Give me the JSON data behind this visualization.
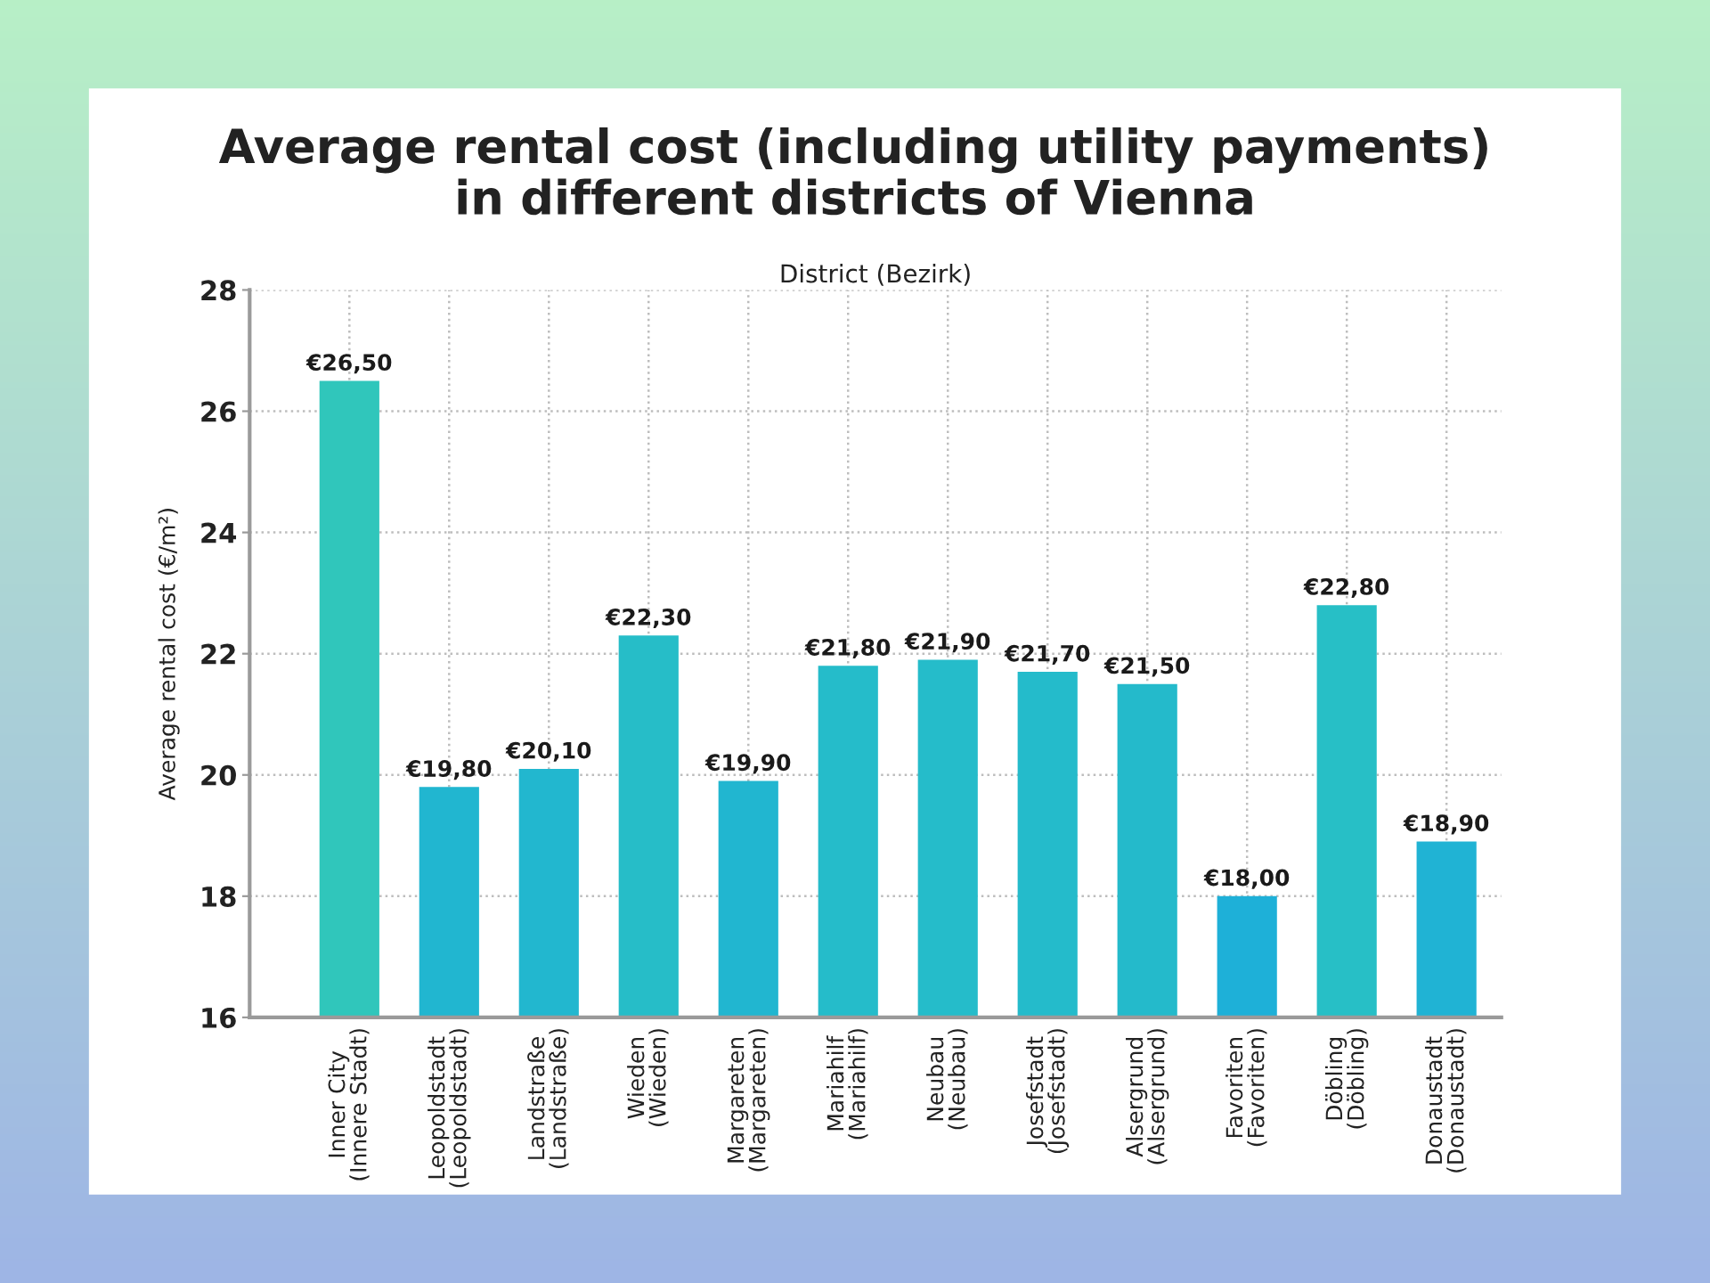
{
  "chart_data": {
    "type": "bar",
    "title": "Average rental cost (including utility payments)\nin different districts of Vienna",
    "xlabel": "District (Bezirk)",
    "ylabel": "Average rental cost (€/m²)",
    "categories": [
      "Inner City\n(Innere Stadt)",
      "Leopoldstadt\n(Leopoldstadt)",
      "Landstraße\n(Landstraße)",
      "Wieden\n(Wieden)",
      "Margareten\n(Margareten)",
      "Mariahilf\n(Mariahilf)",
      "Neubau\n(Neubau)",
      "Josefstadt\n(Josefstadt)",
      "Alsergrund\n(Alsergrund)",
      "Favoriten\n(Favoriten)",
      "Döbling\n(Döbling)",
      "Donaustadt\n(Donaustadt)"
    ],
    "values": [
      26.5,
      19.8,
      20.1,
      22.3,
      19.9,
      21.8,
      21.9,
      21.7,
      21.5,
      18.0,
      22.8,
      18.9
    ],
    "value_labels": [
      "€26,50",
      "€19,80",
      "€20,10",
      "€22,30",
      "€19,90",
      "€21,80",
      "€21,90",
      "€21,70",
      "€21,50",
      "€18,00",
      "€22,80",
      "€18,90"
    ],
    "colors": [
      "#30c6bb",
      "#21b6d0",
      "#22b7cf",
      "#26bdc8",
      "#21b6d0",
      "#25bcca",
      "#25bcca",
      "#24bbcb",
      "#24bacb",
      "#1eb0d8",
      "#27bfc6",
      "#20b3d4"
    ],
    "ylim": [
      16,
      28
    ],
    "yticks": [
      16,
      18,
      20,
      22,
      24,
      26,
      28
    ],
    "grid": true
  }
}
